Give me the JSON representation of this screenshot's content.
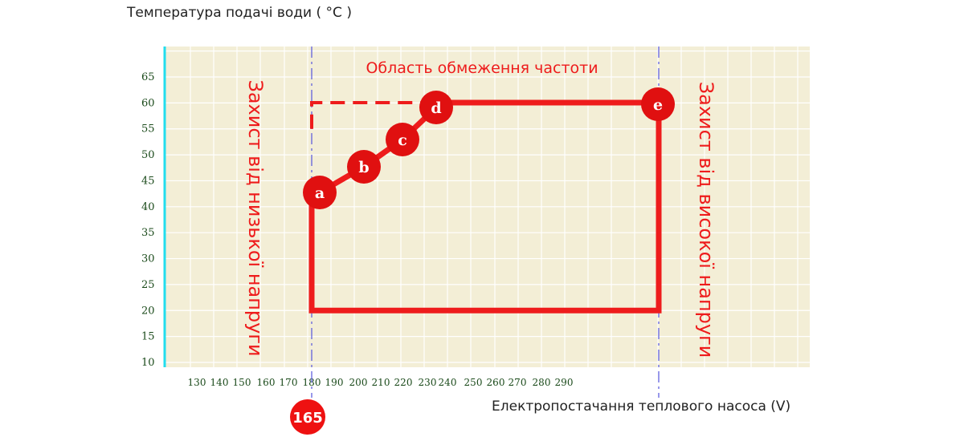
{
  "chart_data": {
    "type": "line",
    "ylabel": "Температура подачі води ( °C )",
    "xlabel": "Електропостачання теплового насоса (V)",
    "title": "Область обмеження частоти",
    "y_ticks": [
      10,
      15,
      20,
      25,
      30,
      35,
      40,
      45,
      50,
      55,
      60,
      65
    ],
    "x_ticks": [
      130,
      140,
      150,
      160,
      170,
      180,
      190,
      200,
      210,
      220,
      230,
      240,
      250,
      260,
      270,
      280,
      290
    ],
    "ylim": [
      10,
      68
    ],
    "left_annotation": "Захист від низької напруги",
    "right_annotation": "Захист від високої напруги",
    "marker_165": "165",
    "points": [
      {
        "label": "a",
        "x": 180,
        "y": 43
      },
      {
        "label": "b",
        "x": 200,
        "y": 47.5
      },
      {
        "label": "c",
        "x": 220,
        "y": 53
      },
      {
        "label": "d",
        "x": 240,
        "y": 60
      },
      {
        "label": "e",
        "x": 330,
        "y": 60
      }
    ],
    "boundary": [
      {
        "x": 180,
        "y": 43
      },
      {
        "x": 180,
        "y": 20
      },
      {
        "x": 330,
        "y": 20
      },
      {
        "x": 330,
        "y": 60
      },
      {
        "x": 240,
        "y": 60
      }
    ],
    "dashed_boundary": [
      {
        "x": 180,
        "y": 55
      },
      {
        "x": 180,
        "y": 60
      },
      {
        "x": 240,
        "y": 60
      }
    ],
    "limit_lines_x": [
      180,
      330
    ],
    "grid": true,
    "colors": {
      "line": "#ee1c1c",
      "plot_bg": "#f3eed6",
      "grid": "#ffffff",
      "limit": "#5555dd",
      "axis": "#22ddee"
    }
  }
}
